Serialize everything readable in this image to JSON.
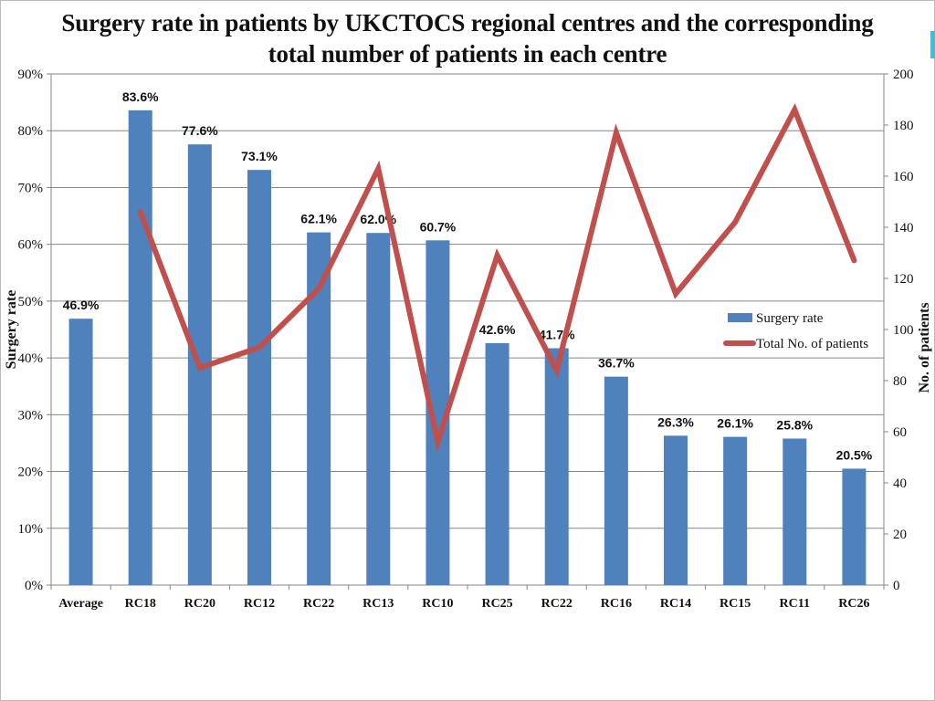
{
  "chart_data": {
    "type": "bar",
    "title_line1": "Surgery rate in patients by UKCTOCS regional centres and the corresponding",
    "title_line2": "total number of patients in each centre",
    "categories": [
      "Average",
      "RC18",
      "RC20",
      "RC12",
      "RC22",
      "RC13",
      "RC10",
      "RC25",
      "RC22",
      "RC16",
      "RC14",
      "RC15",
      "RC11",
      "RC26"
    ],
    "series": [
      {
        "name": "Surgery rate",
        "type": "bar",
        "axis": "left",
        "color": "#4f81bd",
        "values": [
          46.9,
          83.6,
          77.6,
          73.1,
          62.1,
          62.0,
          60.7,
          42.6,
          41.7,
          36.7,
          26.3,
          26.1,
          25.8,
          20.5
        ],
        "labels": [
          "46.9%",
          "83.6%",
          "77.6%",
          "73.1%",
          "62.1%",
          "62.0%",
          "60.7%",
          "42.6%",
          "41.7%",
          "36.7%",
          "26.3%",
          "26.1%",
          "25.8%",
          "20.5%"
        ]
      },
      {
        "name": "Total No. of patients",
        "type": "line",
        "axis": "right",
        "color": "#c0504d",
        "values": [
          null,
          146,
          85,
          93,
          116,
          163,
          56,
          129,
          84,
          177,
          114,
          142,
          186,
          127
        ]
      }
    ],
    "ylabel": "Surgery rate",
    "y2label": "No. of patients",
    "ylim": [
      0,
      90
    ],
    "y2lim": [
      0,
      200
    ],
    "yticks": [
      "0%",
      "10%",
      "20%",
      "30%",
      "40%",
      "50%",
      "60%",
      "70%",
      "80%",
      "90%"
    ],
    "y2ticks": [
      "0",
      "20",
      "40",
      "60",
      "80",
      "100",
      "120",
      "140",
      "160",
      "180",
      "200"
    ],
    "grid": true,
    "legend_position": "right"
  }
}
